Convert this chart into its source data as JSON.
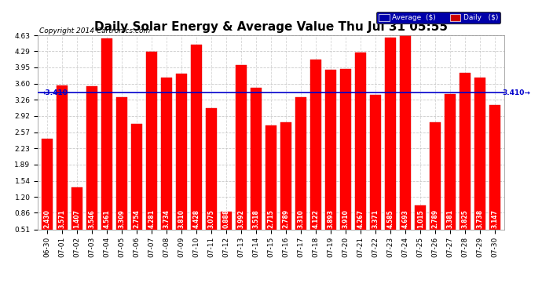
{
  "title": "Daily Solar Energy & Average Value Thu Jul 31 05:55",
  "copyright": "Copyright 2014 Cartronics.com",
  "categories": [
    "06-30",
    "07-01",
    "07-02",
    "07-03",
    "07-04",
    "07-05",
    "07-06",
    "07-07",
    "07-08",
    "07-09",
    "07-10",
    "07-11",
    "07-12",
    "07-13",
    "07-14",
    "07-15",
    "07-16",
    "07-17",
    "07-18",
    "07-19",
    "07-20",
    "07-21",
    "07-22",
    "07-23",
    "07-24",
    "07-25",
    "07-26",
    "07-27",
    "07-28",
    "07-29",
    "07-30"
  ],
  "values": [
    2.43,
    3.571,
    1.407,
    3.546,
    4.561,
    3.309,
    2.754,
    4.281,
    3.734,
    3.81,
    4.428,
    3.075,
    0.888,
    3.992,
    3.518,
    2.715,
    2.789,
    3.31,
    4.122,
    3.893,
    3.91,
    4.267,
    3.371,
    4.585,
    4.693,
    1.015,
    2.789,
    3.381,
    3.825,
    3.738,
    3.147
  ],
  "average": 3.41,
  "bar_color": "#ff0000",
  "average_line_color": "#0000cc",
  "yticks": [
    0.51,
    0.86,
    1.2,
    1.54,
    1.89,
    2.23,
    2.57,
    2.92,
    3.26,
    3.6,
    3.95,
    4.29,
    4.63
  ],
  "ylim_min": 0.51,
  "ylim_max": 4.63,
  "background_color": "#ffffff",
  "grid_color": "#bbbbbb",
  "legend_avg_bg": "#0000aa",
  "legend_daily_bg": "#cc0000",
  "title_fontsize": 11,
  "tick_fontsize": 6.5,
  "value_fontsize": 5.5,
  "copyright_fontsize": 6.5
}
